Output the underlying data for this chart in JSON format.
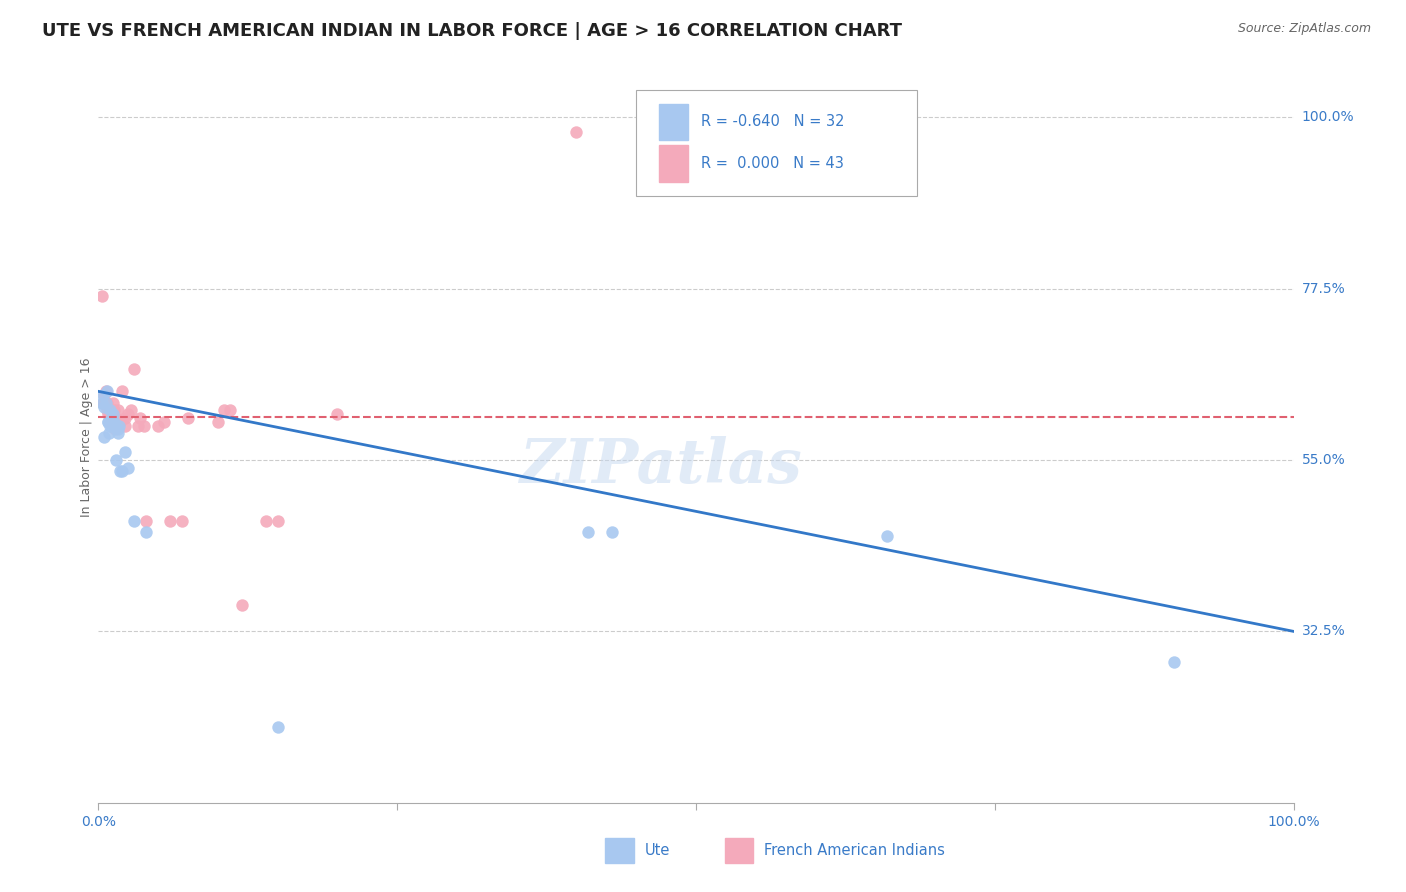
{
  "title": "UTE VS FRENCH AMERICAN INDIAN IN LABOR FORCE | AGE > 16 CORRELATION CHART",
  "source": "Source: ZipAtlas.com",
  "ylabel": "In Labor Force | Age > 16",
  "ylabel_right_ticks": [
    "100.0%",
    "77.5%",
    "55.0%",
    "32.5%"
  ],
  "ylabel_right_vals": [
    1.0,
    0.775,
    0.55,
    0.325
  ],
  "legend_ute_r": "-0.640",
  "legend_ute_n": "32",
  "legend_french_r": "0.000",
  "legend_french_n": "43",
  "ute_color": "#a8c8f0",
  "french_color": "#f4aabb",
  "ute_line_color": "#3378c8",
  "french_line_color": "#e06070",
  "background_color": "#ffffff",
  "watermark": "ZIPatlas",
  "ute_points_x": [
    0.003,
    0.004,
    0.005,
    0.005,
    0.006,
    0.007,
    0.008,
    0.008,
    0.009,
    0.009,
    0.01,
    0.01,
    0.011,
    0.011,
    0.012,
    0.013,
    0.014,
    0.015,
    0.016,
    0.016,
    0.017,
    0.018,
    0.02,
    0.022,
    0.025,
    0.03,
    0.04,
    0.15,
    0.41,
    0.43,
    0.66,
    0.9
  ],
  "ute_points_y": [
    0.625,
    0.635,
    0.62,
    0.58,
    0.625,
    0.64,
    0.6,
    0.6,
    0.585,
    0.6,
    0.615,
    0.595,
    0.6,
    0.595,
    0.61,
    0.6,
    0.595,
    0.55,
    0.59,
    0.585,
    0.595,
    0.535,
    0.535,
    0.56,
    0.54,
    0.47,
    0.455,
    0.2,
    0.455,
    0.455,
    0.45,
    0.285
  ],
  "french_points_x": [
    0.003,
    0.004,
    0.005,
    0.006,
    0.007,
    0.007,
    0.008,
    0.009,
    0.009,
    0.01,
    0.011,
    0.011,
    0.012,
    0.012,
    0.013,
    0.014,
    0.015,
    0.016,
    0.017,
    0.018,
    0.02,
    0.022,
    0.022,
    0.025,
    0.027,
    0.03,
    0.033,
    0.035,
    0.038,
    0.04,
    0.05,
    0.055,
    0.06,
    0.07,
    0.075,
    0.1,
    0.105,
    0.11,
    0.12,
    0.14,
    0.15,
    0.2,
    0.4
  ],
  "french_points_y": [
    0.765,
    0.625,
    0.635,
    0.64,
    0.625,
    0.615,
    0.61,
    0.615,
    0.6,
    0.61,
    0.61,
    0.6,
    0.625,
    0.6,
    0.615,
    0.59,
    0.605,
    0.615,
    0.6,
    0.6,
    0.64,
    0.605,
    0.595,
    0.61,
    0.615,
    0.67,
    0.595,
    0.605,
    0.595,
    0.47,
    0.595,
    0.6,
    0.47,
    0.47,
    0.605,
    0.6,
    0.615,
    0.615,
    0.36,
    0.47,
    0.47,
    0.61,
    0.98
  ],
  "ute_trendline_x": [
    0.0,
    1.0
  ],
  "ute_trendline_y": [
    0.64,
    0.325
  ],
  "french_trendline_x": [
    0.0,
    1.0
  ],
  "french_trendline_y": [
    0.607,
    0.607
  ],
  "xlim": [
    0.0,
    1.0
  ],
  "ylim": [
    0.1,
    1.06
  ],
  "grid_vals": [
    1.0,
    0.775,
    0.55,
    0.325
  ],
  "title_fontsize": 13,
  "axis_label_fontsize": 9
}
